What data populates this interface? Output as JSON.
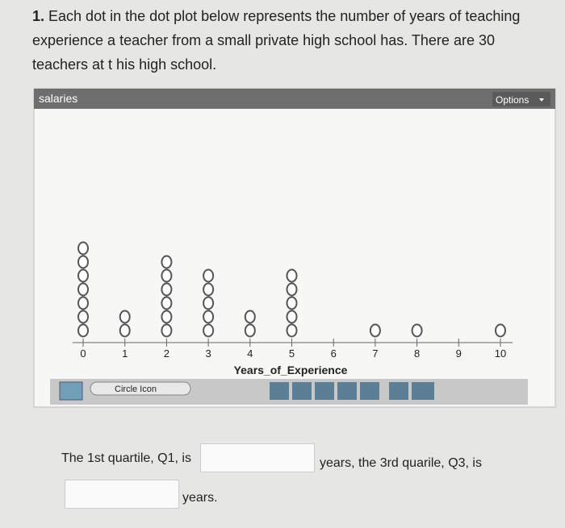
{
  "question": {
    "number": "1.",
    "lines": [
      "Each dot in the dot plot below represents the number of years of teaching",
      "experience a teacher from a small private high school has. There are 30",
      "teachers at t his high school."
    ]
  },
  "panel": {
    "title": "salaries",
    "options": "Options"
  },
  "chart_data": {
    "type": "dotplot",
    "x": [
      0,
      1,
      2,
      3,
      4,
      5,
      6,
      7,
      8,
      9,
      10
    ],
    "values": [
      7,
      2,
      6,
      5,
      2,
      5,
      0,
      1,
      1,
      0,
      1
    ],
    "xlim": [
      -0.3,
      10.3
    ],
    "xticks": [
      0,
      1,
      2,
      3,
      4,
      5,
      6,
      7,
      8,
      9,
      10
    ],
    "xlabel": "Years_of_Experience",
    "color": "#555555"
  },
  "toolbar": {
    "dropdown": "Circle Icon"
  },
  "answer": {
    "q1_text": "The 1st quartile, Q1, is",
    "q3_text": "years, the 3rd quarile, Q3, is",
    "end_text": "years."
  }
}
